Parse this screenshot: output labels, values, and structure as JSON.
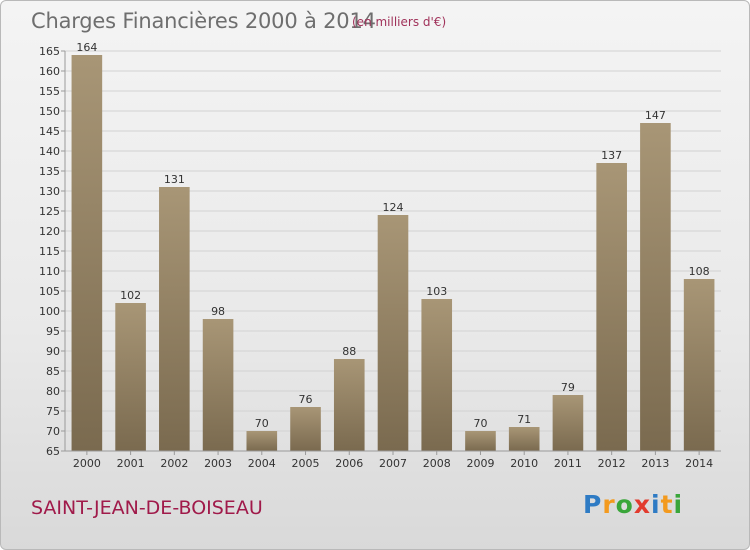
{
  "header": {
    "title": "Charges Financières 2000 à 2014",
    "subtitle": "(en milliers d'€)"
  },
  "footer": {
    "commune": "SAINT-JEAN-DE-BOISEAU",
    "brand": [
      "P",
      "r",
      "o",
      "x",
      "i",
      "t",
      "i"
    ],
    "brand_colors": [
      "#2e7bc4",
      "#f39a1e",
      "#3aa63a",
      "#e23b2e",
      "#2e7bc4",
      "#f39a1e",
      "#3aa63a"
    ]
  },
  "colors": {
    "bar_top": "#a89676",
    "bar_bottom": "#7a6a4f",
    "grid": "#d2d2d2",
    "axis": "#9a9a9a",
    "label": "#333333"
  },
  "chart_data": {
    "type": "bar",
    "categories": [
      "2000",
      "2001",
      "2002",
      "2003",
      "2004",
      "2005",
      "2006",
      "2007",
      "2008",
      "2009",
      "2010",
      "2011",
      "2012",
      "2013",
      "2014"
    ],
    "values": [
      164,
      102,
      131,
      98,
      70,
      76,
      88,
      124,
      103,
      70,
      71,
      79,
      137,
      147,
      108
    ],
    "ylim": [
      65,
      165
    ],
    "ytick_step": 5,
    "grid": true,
    "data_labels": true
  }
}
